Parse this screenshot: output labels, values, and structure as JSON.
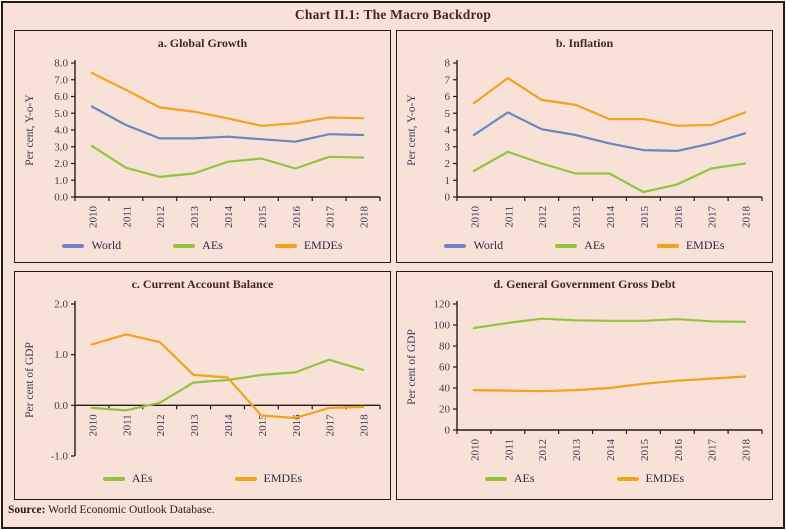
{
  "title": "Chart II.1: The Macro Backdrop",
  "source": {
    "label": "Source:",
    "text": " World Economic Outlook Database."
  },
  "colors": {
    "world": "#6e86c0",
    "aes": "#94c33e",
    "emdes": "#f4a11d",
    "axis": "#2a1a14",
    "background": "#f8e2d8",
    "heading_text": "#4a2521",
    "tick_text": "#3c3c55"
  },
  "chart_data": [
    {
      "type": "line",
      "title": "a. Global Growth",
      "ylabel": "Per cent, Y-o-Y",
      "ylim": [
        0,
        8
      ],
      "ytick_step": 1,
      "ydecimals": 1,
      "x_axis_at": 0,
      "grid": false,
      "legend_position": "bottom",
      "categories": [
        "2010",
        "2011",
        "2012",
        "2013",
        "2014",
        "2015",
        "2016",
        "2017",
        "2018"
      ],
      "series": [
        {
          "name": "World",
          "color_key": "world",
          "values": [
            5.4,
            4.3,
            3.5,
            3.5,
            3.6,
            3.45,
            3.3,
            3.75,
            3.7
          ]
        },
        {
          "name": "AEs",
          "color_key": "aes",
          "values": [
            3.05,
            1.75,
            1.2,
            1.4,
            2.1,
            2.3,
            1.7,
            2.4,
            2.35
          ]
        },
        {
          "name": "EMDEs",
          "color_key": "emdes",
          "values": [
            7.4,
            6.4,
            5.35,
            5.1,
            4.7,
            4.25,
            4.4,
            4.75,
            4.7
          ]
        }
      ]
    },
    {
      "type": "line",
      "title": "b. Inflation",
      "ylabel": "Per cent, Y-o-Y",
      "ylim": [
        0,
        8
      ],
      "ytick_step": 1,
      "ydecimals": 0,
      "x_axis_at": 0,
      "grid": false,
      "legend_position": "bottom",
      "categories": [
        "2010",
        "2011",
        "2012",
        "2013",
        "2014",
        "2015",
        "2016",
        "2017",
        "2018"
      ],
      "series": [
        {
          "name": "World",
          "color_key": "world",
          "values": [
            3.7,
            5.05,
            4.05,
            3.7,
            3.2,
            2.8,
            2.75,
            3.2,
            3.8
          ]
        },
        {
          "name": "AEs",
          "color_key": "aes",
          "values": [
            1.55,
            2.7,
            2.0,
            1.4,
            1.4,
            0.3,
            0.75,
            1.7,
            2.0
          ]
        },
        {
          "name": "EMDEs",
          "color_key": "emdes",
          "values": [
            5.6,
            7.1,
            5.8,
            5.5,
            4.65,
            4.65,
            4.25,
            4.3,
            5.05
          ]
        }
      ]
    },
    {
      "type": "line",
      "title": "c. Current Account Balance",
      "ylabel": "Per cent of GDP",
      "ylim": [
        -1,
        2
      ],
      "ytick_step": 1,
      "ydecimals": 1,
      "x_axis_at": 0,
      "grid": false,
      "legend_position": "bottom",
      "categories": [
        "2010",
        "2011",
        "2012",
        "2013",
        "2014",
        "2015",
        "2016",
        "2017",
        "2018"
      ],
      "series": [
        {
          "name": "AEs",
          "color_key": "aes",
          "values": [
            -0.05,
            -0.1,
            0.05,
            0.45,
            0.5,
            0.6,
            0.65,
            0.9,
            0.7
          ]
        },
        {
          "name": "EMDEs",
          "color_key": "emdes",
          "values": [
            1.2,
            1.4,
            1.25,
            0.6,
            0.55,
            -0.2,
            -0.25,
            -0.05,
            -0.03
          ]
        }
      ]
    },
    {
      "type": "line",
      "title": "d. General Government Gross Debt",
      "ylabel": "Per cent of GDP",
      "ylim": [
        0,
        120
      ],
      "ytick_step": 20,
      "ydecimals": 0,
      "x_axis_at": 0,
      "grid": false,
      "legend_position": "bottom",
      "categories": [
        "2010",
        "2011",
        "2012",
        "2013",
        "2014",
        "2015",
        "2016",
        "2017",
        "2018"
      ],
      "series": [
        {
          "name": "AEs",
          "color_key": "aes",
          "values": [
            97,
            102,
            106,
            104.5,
            104,
            104,
            105.5,
            103.5,
            103
          ]
        },
        {
          "name": "EMDEs",
          "color_key": "emdes",
          "values": [
            38,
            37.5,
            37,
            38,
            40,
            44,
            47,
            49,
            51
          ]
        }
      ]
    }
  ]
}
